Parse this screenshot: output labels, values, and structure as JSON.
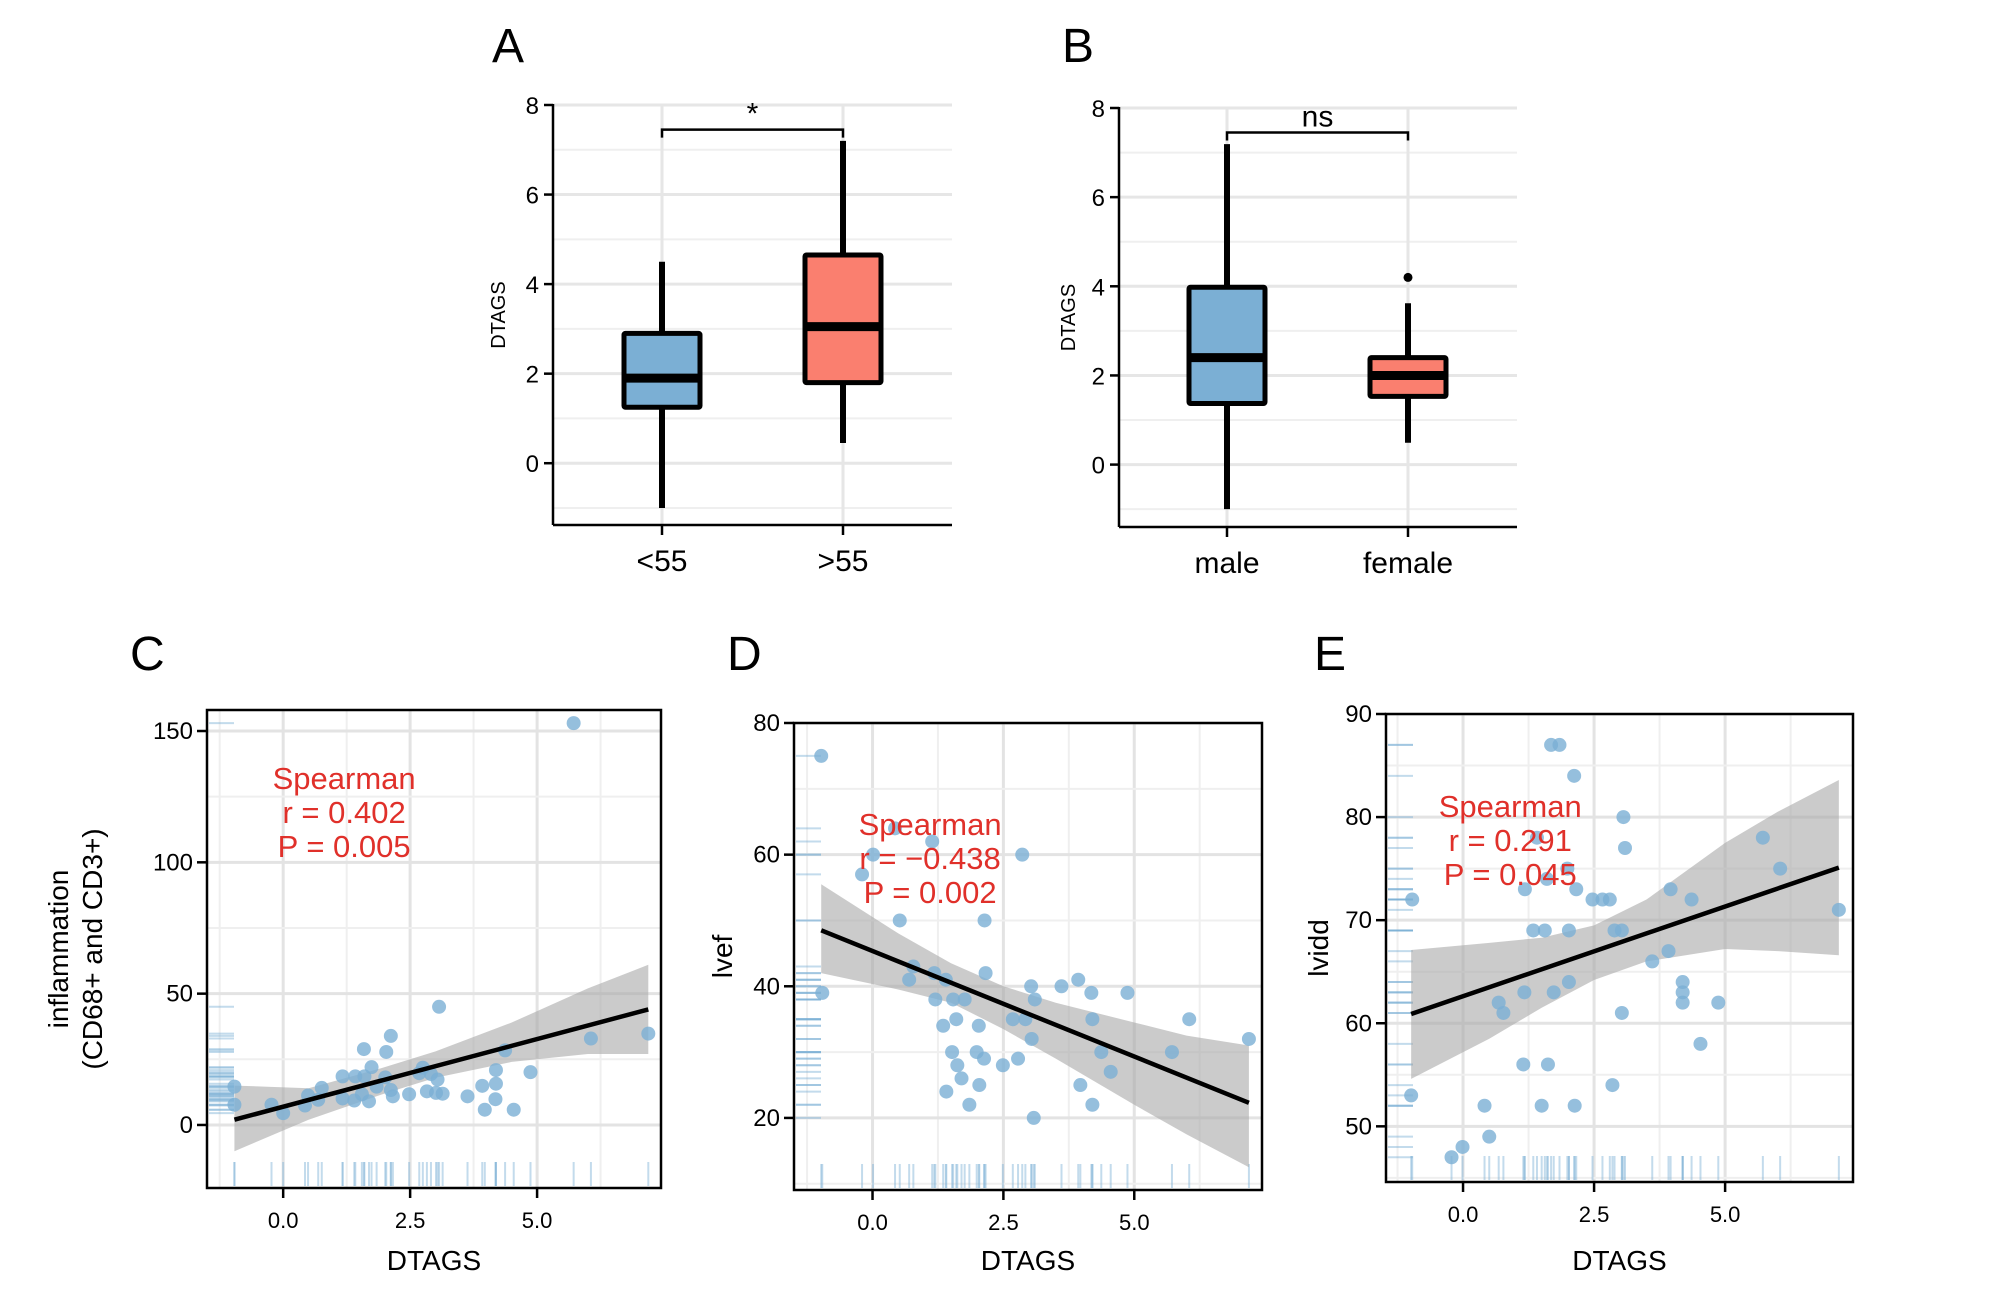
{
  "figure": {
    "panel_letters": [
      "A",
      "B",
      "C",
      "D",
      "E"
    ]
  },
  "colors": {
    "low_group": "#7BAFD4",
    "high_group": "#FA7F6F",
    "points": "#7BAFD4",
    "stat_text": "#E0302A",
    "ci_band": "#A9A9A9",
    "grid": "#E6E6E6"
  },
  "chart_data": [
    {
      "id": "A",
      "type": "box",
      "title": "A",
      "xlabel": "",
      "ylabel": "DTAGS",
      "ylim": [
        -1.38,
        8
      ],
      "yticks": [
        0,
        2,
        4,
        6,
        8
      ],
      "ytick_labels": [
        "0",
        "2",
        "4",
        "6",
        "8"
      ],
      "grid": true,
      "categories": [
        "<55",
        ">55"
      ],
      "boxes": [
        {
          "category": "<55",
          "color": "#7BAFD4",
          "whisker_low": -1.0,
          "q1": 1.25,
          "median": 1.9,
          "q3": 2.9,
          "whisker_high": 4.5,
          "outliers": []
        },
        {
          "category": ">55",
          "color": "#FA7F6F",
          "whisker_low": 0.45,
          "q1": 1.8,
          "median": 3.05,
          "q3": 4.65,
          "whisker_high": 7.2,
          "outliers": []
        }
      ],
      "significance": {
        "label": "*",
        "y": 7.45
      }
    },
    {
      "id": "B",
      "type": "box",
      "title": "B",
      "xlabel": "",
      "ylabel": "DTAGS",
      "ylim": [
        -1.4,
        8
      ],
      "yticks": [
        0,
        2,
        4,
        6,
        8
      ],
      "ytick_labels": [
        "0",
        "2",
        "4",
        "6",
        "8"
      ],
      "grid": true,
      "categories": [
        "male",
        "female"
      ],
      "boxes": [
        {
          "category": "male",
          "color": "#7BAFD4",
          "whisker_low": -1.0,
          "q1": 1.37,
          "median": 2.4,
          "q3": 3.98,
          "whisker_high": 7.19,
          "outliers": []
        },
        {
          "category": "female",
          "color": "#FA7F6F",
          "whisker_low": 0.49,
          "q1": 1.53,
          "median": 2.0,
          "q3": 2.4,
          "whisker_high": 3.62,
          "outliers": [
            4.2
          ]
        }
      ],
      "significance": {
        "label": "ns",
        "y": 7.45
      }
    },
    {
      "id": "C",
      "type": "scatter",
      "title": "C",
      "xlabel": "DTAGS",
      "ylabel": [
        "inflammation",
        "(CD68+ and CD3+)"
      ],
      "xlim": [
        -1.5,
        7.44
      ],
      "ylim": [
        -24,
        158
      ],
      "xticks": [
        0,
        2.5,
        5
      ],
      "xtick_labels": [
        "0.0",
        "2.5",
        "5.0"
      ],
      "yticks": [
        0,
        50,
        100,
        150
      ],
      "ytick_labels": [
        "0",
        "50",
        "100",
        "150"
      ],
      "grid": true,
      "annotation": {
        "lines": [
          "Spearman",
          " r = 0.402",
          " P = 0.005"
        ],
        "method": "Spearman",
        "r": 0.402,
        "p": 0.005,
        "x": 1.2,
        "y": 128
      },
      "fit": {
        "x": [
          -0.96,
          7.19
        ],
        "y": [
          2,
          44
        ]
      },
      "ci_band": [
        [
          -0.96,
          -10,
          15
        ],
        [
          0.5,
          2,
          14
        ],
        [
          2.0,
          12,
          22
        ],
        [
          3.0,
          18,
          28
        ],
        [
          4.5,
          24,
          39
        ],
        [
          6.0,
          27,
          52
        ],
        [
          7.19,
          27,
          61
        ]
      ],
      "points": [
        [
          5.72,
          153
        ],
        [
          3.07,
          45
        ],
        [
          7.19,
          34.8
        ],
        [
          6.06,
          32.9
        ],
        [
          2.12,
          33.9
        ],
        [
          1.59,
          28.9
        ],
        [
          2.03,
          27.8
        ],
        [
          4.37,
          28.4
        ],
        [
          1.74,
          22
        ],
        [
          2.75,
          21.8
        ],
        [
          4.19,
          20.9
        ],
        [
          4.87,
          20.1
        ],
        [
          2.91,
          19.4
        ],
        [
          1.17,
          18.5
        ],
        [
          1.42,
          18.5
        ],
        [
          1.6,
          18.5
        ],
        [
          2.01,
          18.1
        ],
        [
          2.68,
          19.7
        ],
        [
          3.04,
          17.3
        ],
        [
          -0.96,
          14.6
        ],
        [
          0.76,
          14.1
        ],
        [
          1.84,
          14.6
        ],
        [
          3.92,
          14.9
        ],
        [
          4.19,
          15.7
        ],
        [
          2.12,
          13.3
        ],
        [
          2.83,
          12.8
        ],
        [
          3.01,
          12.2
        ],
        [
          3.14,
          11.9
        ],
        [
          2.48,
          11.7
        ],
        [
          2.16,
          10.9
        ],
        [
          3.63,
          10.9
        ],
        [
          0.49,
          11.2
        ],
        [
          1.17,
          10.1
        ],
        [
          1.55,
          11.7
        ],
        [
          1.4,
          9.3
        ],
        [
          1.69,
          9.0
        ],
        [
          0.69,
          9.6
        ],
        [
          4.18,
          9.8
        ],
        [
          -0.96,
          7.7
        ],
        [
          -0.23,
          7.7
        ],
        [
          0.43,
          7.4
        ],
        [
          3.97,
          5.8
        ],
        [
          4.54,
          5.8
        ],
        [
          0.0,
          4.5
        ]
      ]
    },
    {
      "id": "D",
      "type": "scatter",
      "title": "D",
      "xlabel": "DTAGS",
      "ylabel": [
        "lvef"
      ],
      "xlim": [
        -1.5,
        7.44
      ],
      "ylim": [
        9.05,
        80
      ],
      "xticks": [
        0,
        2.5,
        5
      ],
      "xtick_labels": [
        "0.0",
        "2.5",
        "5.0"
      ],
      "yticks": [
        20,
        40,
        60,
        80
      ],
      "ytick_labels": [
        "20",
        "40",
        "60",
        "80"
      ],
      "grid": true,
      "annotation": {
        "lines": [
          "Spearman",
          "r = −0.438",
          "P = 0.002"
        ],
        "method": "Spearman",
        "r": -0.438,
        "p": 0.002,
        "x": 1.1,
        "y": 63
      },
      "fit": {
        "x": [
          -0.98,
          7.19
        ],
        "y": [
          48.5,
          22.3
        ]
      },
      "ci_band": [
        [
          -0.98,
          42,
          55.5
        ],
        [
          0.5,
          39.5,
          48
        ],
        [
          1.5,
          37.5,
          43.5
        ],
        [
          2.5,
          33.5,
          40
        ],
        [
          3.5,
          29,
          37.5
        ],
        [
          5.0,
          22,
          34.5
        ],
        [
          6.0,
          17.5,
          32.5
        ],
        [
          7.19,
          12.5,
          31
        ]
      ],
      "points": [
        [
          -0.98,
          75
        ],
        [
          0.43,
          64
        ],
        [
          1.14,
          62
        ],
        [
          0.01,
          60
        ],
        [
          2.86,
          60
        ],
        [
          -0.2,
          57
        ],
        [
          0.52,
          50
        ],
        [
          2.14,
          50
        ],
        [
          2.16,
          42
        ],
        [
          0.78,
          43
        ],
        [
          1.18,
          42
        ],
        [
          0.7,
          41
        ],
        [
          1.4,
          41
        ],
        [
          3.93,
          41
        ],
        [
          3.03,
          40
        ],
        [
          3.61,
          40
        ],
        [
          -0.96,
          39
        ],
        [
          4.18,
          39
        ],
        [
          4.87,
          39
        ],
        [
          1.2,
          38
        ],
        [
          1.54,
          38
        ],
        [
          1.76,
          38
        ],
        [
          3.1,
          38
        ],
        [
          1.6,
          35
        ],
        [
          2.68,
          35
        ],
        [
          2.92,
          35
        ],
        [
          4.2,
          35
        ],
        [
          6.05,
          35
        ],
        [
          1.35,
          34
        ],
        [
          2.03,
          34
        ],
        [
          3.04,
          32
        ],
        [
          7.19,
          32
        ],
        [
          1.52,
          30
        ],
        [
          1.99,
          30
        ],
        [
          4.37,
          30
        ],
        [
          5.72,
          30
        ],
        [
          2.13,
          29
        ],
        [
          2.78,
          29
        ],
        [
          1.62,
          28
        ],
        [
          2.49,
          28
        ],
        [
          4.55,
          27
        ],
        [
          1.7,
          26
        ],
        [
          2.04,
          25
        ],
        [
          3.97,
          25
        ],
        [
          1.41,
          24
        ],
        [
          1.85,
          22
        ],
        [
          4.2,
          22
        ],
        [
          3.08,
          20
        ]
      ]
    },
    {
      "id": "E",
      "type": "scatter",
      "title": "E",
      "xlabel": "DTAGS",
      "ylabel": [
        "lvidd"
      ],
      "xlim": [
        -1.47,
        7.44
      ],
      "ylim": [
        44.6,
        90
      ],
      "xticks": [
        0,
        2.5,
        5
      ],
      "xtick_labels": [
        "0.0",
        "2.5",
        "5.0"
      ],
      "yticks": [
        50,
        60,
        70,
        80,
        90
      ],
      "ytick_labels": [
        "50",
        "60",
        "70",
        "80",
        "90"
      ],
      "grid": true,
      "annotation": {
        "lines": [
          "Spearman",
          "r = 0.291",
          "P = 0.045"
        ],
        "method": "Spearman",
        "r": 0.291,
        "p": 0.045,
        "x": 0.9,
        "y": 80
      },
      "fit": {
        "x": [
          -0.99,
          7.17
        ],
        "y": [
          60.9,
          75.1
        ]
      },
      "ci_band": [
        [
          -0.99,
          54.6,
          67.1
        ],
        [
          0.5,
          58.5,
          67.8
        ],
        [
          1.5,
          61.5,
          68.3
        ],
        [
          2.5,
          64.2,
          69.5
        ],
        [
          3.5,
          66,
          72
        ],
        [
          5.0,
          67.2,
          77.5
        ],
        [
          6.0,
          67,
          80.5
        ],
        [
          7.17,
          66.6,
          83.6
        ]
      ],
      "points": [
        [
          1.68,
          87
        ],
        [
          1.84,
          87
        ],
        [
          2.12,
          84
        ],
        [
          3.06,
          80
        ],
        [
          1.41,
          78
        ],
        [
          5.72,
          78
        ],
        [
          3.09,
          77
        ],
        [
          1.99,
          75
        ],
        [
          6.05,
          75
        ],
        [
          1.6,
          74
        ],
        [
          1.18,
          73
        ],
        [
          2.16,
          73
        ],
        [
          3.96,
          73
        ],
        [
          -0.97,
          72
        ],
        [
          2.47,
          72
        ],
        [
          2.66,
          72
        ],
        [
          2.8,
          72
        ],
        [
          4.36,
          72
        ],
        [
          7.17,
          71
        ],
        [
          1.34,
          69
        ],
        [
          1.56,
          69
        ],
        [
          2.02,
          69
        ],
        [
          2.89,
          69
        ],
        [
          3.03,
          69
        ],
        [
          3.92,
          67
        ],
        [
          3.61,
          66
        ],
        [
          2.02,
          64
        ],
        [
          4.19,
          64
        ],
        [
          1.17,
          63
        ],
        [
          1.73,
          63
        ],
        [
          4.19,
          63
        ],
        [
          0.68,
          62
        ],
        [
          4.19,
          62
        ],
        [
          4.87,
          62
        ],
        [
          0.77,
          61
        ],
        [
          3.03,
          61
        ],
        [
          4.53,
          58
        ],
        [
          1.15,
          56
        ],
        [
          1.62,
          56
        ],
        [
          2.85,
          54
        ],
        [
          -0.99,
          53
        ],
        [
          0.41,
          52
        ],
        [
          1.5,
          52
        ],
        [
          2.13,
          52
        ],
        [
          0.5,
          49
        ],
        [
          -0.01,
          48
        ],
        [
          -0.22,
          47
        ]
      ]
    }
  ]
}
